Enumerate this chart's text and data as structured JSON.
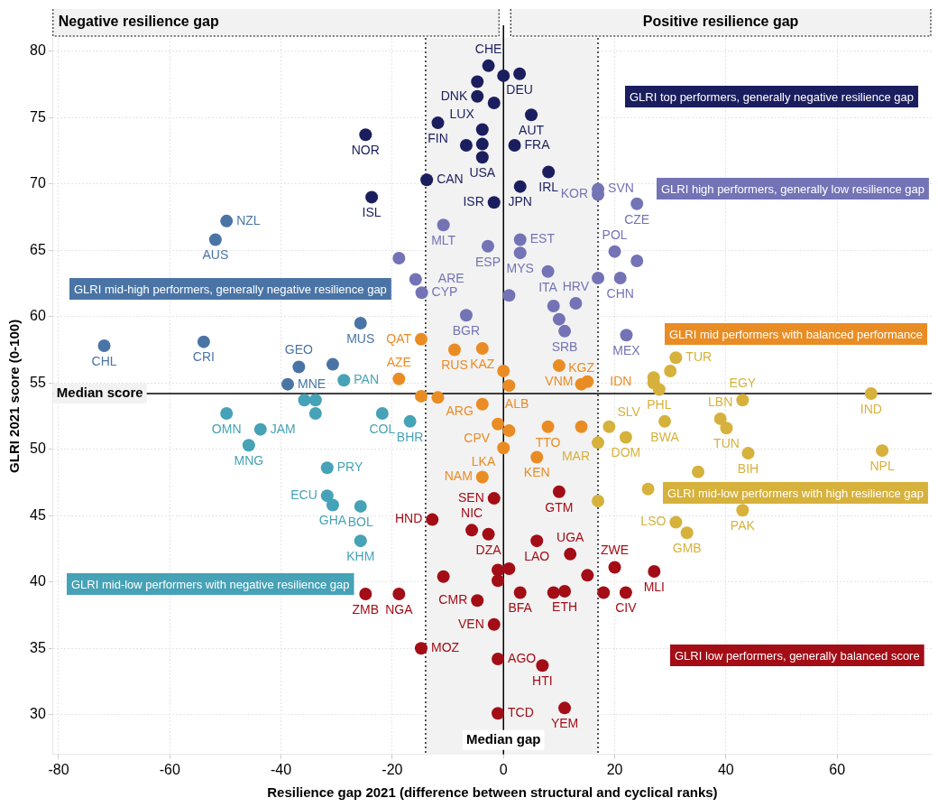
{
  "chart_data": {
    "type": "scatter",
    "xlabel": "Resilience gap 2021 (difference between structural and cyclical ranks)",
    "ylabel": "GLRI 2021 score (0-100)",
    "xlim": [
      -81,
      77
    ],
    "ylim": [
      27,
      81
    ],
    "xticks": [
      -80,
      -60,
      -40,
      -20,
      0,
      20,
      40,
      60
    ],
    "yticks": [
      30,
      35,
      40,
      45,
      50,
      55,
      60,
      65,
      70,
      75,
      80
    ],
    "grid": true,
    "marker": "circle",
    "annotations": [
      "Negative resilience gap",
      "Positive resilience gap"
    ],
    "bands": [
      {
        "axis": "x",
        "from": -14,
        "to": 17,
        "color": "#f2f2f2"
      }
    ],
    "ref_lines": [
      {
        "axis": "x",
        "value": 0,
        "label": "Median gap"
      },
      {
        "axis": "x",
        "value": -14,
        "line_style": "dotted"
      },
      {
        "axis": "x",
        "value": 17,
        "line_style": "dotted"
      },
      {
        "axis": "y",
        "value": 54.2,
        "label": "Median score"
      }
    ],
    "series": [
      {
        "name": "GLRI top performers, generally negative resilience gap",
        "color": "#1b1e5e",
        "x": [
          -2.7,
          0,
          2.9,
          -4.7,
          -4.7,
          -1.7,
          5,
          -24.8,
          -11.8,
          -3.8,
          -6.7,
          -3.8,
          2,
          -3.8,
          8.1,
          -13.8,
          -23.7,
          3,
          -1.7
        ],
        "values": [
          78.9,
          78.15,
          78.3,
          77.7,
          76.6,
          76.1,
          75.2,
          73.7,
          74.6,
          74.1,
          72.9,
          73,
          72.9,
          72,
          70.9,
          70.3,
          69,
          69.8,
          68.6
        ],
        "value_labels": [
          "CHE",
          null,
          "DEU",
          null,
          "DNK",
          null,
          "AUT",
          "NOR",
          "FIN",
          "LUX",
          null,
          null,
          "FRA",
          "USA",
          "IRL",
          "CAN",
          "ISL",
          "JPN",
          "ISR"
        ]
      },
      {
        "name": "GLRI high performers, generally low resilience gap",
        "color": "#7373b6",
        "x": [
          17,
          17,
          24,
          -10.8,
          -18.8,
          -15.8,
          -14.7,
          -2.8,
          3,
          3,
          20,
          24,
          8,
          17,
          21,
          1,
          9,
          13,
          -6.7,
          10,
          11,
          22.1
        ],
        "values": [
          69.6,
          69.2,
          68.5,
          66.9,
          64.4,
          62.8,
          61.8,
          65.3,
          65.8,
          64.8,
          64.9,
          64.2,
          63.4,
          62.9,
          62.9,
          61.6,
          60.8,
          61,
          60.1,
          59.8,
          58.9,
          58.6
        ],
        "value_labels": [
          "SVN",
          "KOR",
          "CZE",
          "MLT",
          null,
          "ARE",
          "CYP",
          "ESP",
          "EST",
          "MYS",
          "POL",
          null,
          "ITA",
          null,
          "CHN",
          null,
          null,
          "HRV",
          "BGR",
          null,
          "SRB",
          "MEX"
        ]
      },
      {
        "name": "GLRI mid-high performers, generally negative resilience gap",
        "color": "#4a74a6",
        "x": [
          -49.8,
          -51.8,
          -25.7,
          -71.8,
          -53.9,
          -36.8,
          -30.7,
          -38.8
        ],
        "values": [
          67.2,
          65.8,
          59.5,
          57.8,
          58.1,
          56.2,
          56.4,
          54.9
        ],
        "value_labels": [
          "NZL",
          "AUS",
          "MUS",
          "CHL",
          "CRI",
          "GEO",
          null,
          "MNE"
        ]
      },
      {
        "name": "GLRI mid performers with balanced performance",
        "color": "#ea8c24",
        "x": [
          -14.8,
          -8.8,
          -3.8,
          -18.8,
          -14.8,
          -11.8,
          0,
          1,
          10,
          14,
          15.1,
          -3.8,
          -1,
          1,
          8,
          14,
          0,
          6,
          -3.8
        ],
        "values": [
          58.3,
          57.5,
          57.6,
          55.3,
          54,
          53.9,
          55.9,
          54.8,
          56.3,
          54.9,
          55.1,
          53.4,
          51.9,
          51.4,
          51.7,
          51.7,
          50.1,
          49.4,
          47.9
        ],
        "value_labels": [
          "QAT",
          "RUS",
          "KAZ",
          "AZE",
          null,
          "ARG",
          null,
          null,
          "VNM",
          "KGZ",
          "IDN",
          "ALB",
          "CPV",
          null,
          "TTO",
          null,
          "LKA",
          "KEN",
          "NAM"
        ]
      },
      {
        "name": "GLRI mid-low performers with high resilience gap",
        "color": "#d6b13c",
        "x": [
          31,
          30,
          27,
          27,
          28,
          66.1,
          43,
          19,
          29,
          39,
          40.1,
          22,
          17,
          44,
          68.1,
          35,
          26,
          17,
          43,
          31,
          33
        ],
        "values": [
          56.9,
          55.9,
          55.4,
          55,
          54.5,
          54.2,
          53.7,
          51.7,
          52.1,
          52.3,
          51.6,
          50.9,
          50.5,
          49.7,
          49.9,
          48.3,
          47,
          46.1,
          45.4,
          44.5,
          43.7
        ],
        "value_labels": [
          "TUR",
          null,
          null,
          null,
          "PHL",
          "IND",
          "EGY",
          "SLV",
          "BWA",
          "LBN",
          "TUN",
          "DOM",
          "MAR",
          "BIH",
          "NPL",
          null,
          null,
          null,
          "PAK",
          "LSO",
          "GMB"
        ]
      },
      {
        "name": "GLRI mid-low performers with negative resilience gap",
        "color": "#46a2b6",
        "x": [
          -28.7,
          -35.8,
          -33.8,
          -33.8,
          -49.8,
          -43.7,
          -45.8,
          -21.8,
          -16.8,
          -31.7,
          -31.7,
          -30.7,
          -25.7,
          -25.7
        ],
        "values": [
          55.2,
          53.7,
          53.7,
          52.7,
          52.7,
          51.5,
          50.3,
          52.7,
          52.1,
          48.6,
          46.5,
          45.8,
          45.7,
          43.1
        ],
        "value_labels": [
          "PAN",
          null,
          null,
          null,
          "OMN",
          "JAM",
          "MNG",
          "COL",
          "BHR",
          "PRY",
          "ECU",
          "GHA",
          "BOL",
          "KHM"
        ]
      },
      {
        "name": "GLRI low performers, generally balanced score",
        "color": "#a30d16",
        "x": [
          -1.7,
          10,
          -12.8,
          -5.7,
          -2.7,
          6,
          12,
          20,
          27.1,
          -1,
          1,
          -1,
          -10.8,
          -4.7,
          15.1,
          3,
          9,
          11,
          18,
          22,
          -24.8,
          -18.8,
          -1.7,
          -14.8,
          -1,
          7,
          -1,
          11
        ],
        "values": [
          46.3,
          46.8,
          44.7,
          43.9,
          43.6,
          43.1,
          42.1,
          41.1,
          40.8,
          40.9,
          41,
          40.1,
          40.4,
          38.6,
          40.5,
          39.2,
          39.2,
          39.3,
          39.2,
          39.2,
          39.1,
          39.1,
          36.8,
          35,
          34.2,
          33.7,
          30.1,
          30.5
        ],
        "value_labels": [
          "SEN",
          "GTM",
          "HND",
          "NIC",
          "DZA",
          "LAO",
          "UGA",
          "ZWE",
          "MLI",
          null,
          null,
          null,
          null,
          "CMR",
          null,
          "BFA",
          null,
          "ETH",
          null,
          "CIV",
          "ZMB",
          "NGA",
          "VEN",
          "MOZ",
          "AGO",
          "HTI",
          "TCD",
          "YEM"
        ]
      }
    ]
  }
}
